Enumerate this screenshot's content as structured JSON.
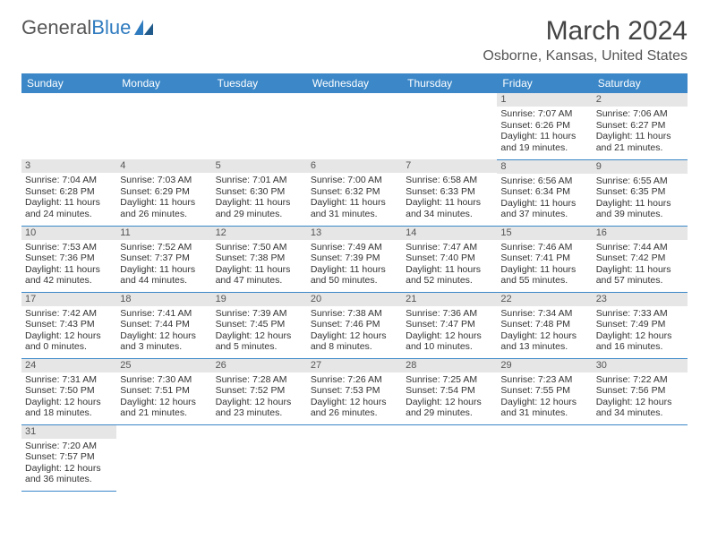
{
  "logo": {
    "text_a": "General",
    "text_b": "Blue"
  },
  "title": "March 2024",
  "location": "Osborne, Kansas, United States",
  "header_bg": "#3b87c8",
  "daynum_bg": "#e6e6e6",
  "day_names": [
    "Sunday",
    "Monday",
    "Tuesday",
    "Wednesday",
    "Thursday",
    "Friday",
    "Saturday"
  ],
  "weeks": [
    [
      null,
      null,
      null,
      null,
      null,
      {
        "n": "1",
        "sunrise": "Sunrise: 7:07 AM",
        "sunset": "Sunset: 6:26 PM",
        "daylight": "Daylight: 11 hours and 19 minutes."
      },
      {
        "n": "2",
        "sunrise": "Sunrise: 7:06 AM",
        "sunset": "Sunset: 6:27 PM",
        "daylight": "Daylight: 11 hours and 21 minutes."
      }
    ],
    [
      {
        "n": "3",
        "sunrise": "Sunrise: 7:04 AM",
        "sunset": "Sunset: 6:28 PM",
        "daylight": "Daylight: 11 hours and 24 minutes."
      },
      {
        "n": "4",
        "sunrise": "Sunrise: 7:03 AM",
        "sunset": "Sunset: 6:29 PM",
        "daylight": "Daylight: 11 hours and 26 minutes."
      },
      {
        "n": "5",
        "sunrise": "Sunrise: 7:01 AM",
        "sunset": "Sunset: 6:30 PM",
        "daylight": "Daylight: 11 hours and 29 minutes."
      },
      {
        "n": "6",
        "sunrise": "Sunrise: 7:00 AM",
        "sunset": "Sunset: 6:32 PM",
        "daylight": "Daylight: 11 hours and 31 minutes."
      },
      {
        "n": "7",
        "sunrise": "Sunrise: 6:58 AM",
        "sunset": "Sunset: 6:33 PM",
        "daylight": "Daylight: 11 hours and 34 minutes."
      },
      {
        "n": "8",
        "sunrise": "Sunrise: 6:56 AM",
        "sunset": "Sunset: 6:34 PM",
        "daylight": "Daylight: 11 hours and 37 minutes."
      },
      {
        "n": "9",
        "sunrise": "Sunrise: 6:55 AM",
        "sunset": "Sunset: 6:35 PM",
        "daylight": "Daylight: 11 hours and 39 minutes."
      }
    ],
    [
      {
        "n": "10",
        "sunrise": "Sunrise: 7:53 AM",
        "sunset": "Sunset: 7:36 PM",
        "daylight": "Daylight: 11 hours and 42 minutes."
      },
      {
        "n": "11",
        "sunrise": "Sunrise: 7:52 AM",
        "sunset": "Sunset: 7:37 PM",
        "daylight": "Daylight: 11 hours and 44 minutes."
      },
      {
        "n": "12",
        "sunrise": "Sunrise: 7:50 AM",
        "sunset": "Sunset: 7:38 PM",
        "daylight": "Daylight: 11 hours and 47 minutes."
      },
      {
        "n": "13",
        "sunrise": "Sunrise: 7:49 AM",
        "sunset": "Sunset: 7:39 PM",
        "daylight": "Daylight: 11 hours and 50 minutes."
      },
      {
        "n": "14",
        "sunrise": "Sunrise: 7:47 AM",
        "sunset": "Sunset: 7:40 PM",
        "daylight": "Daylight: 11 hours and 52 minutes."
      },
      {
        "n": "15",
        "sunrise": "Sunrise: 7:46 AM",
        "sunset": "Sunset: 7:41 PM",
        "daylight": "Daylight: 11 hours and 55 minutes."
      },
      {
        "n": "16",
        "sunrise": "Sunrise: 7:44 AM",
        "sunset": "Sunset: 7:42 PM",
        "daylight": "Daylight: 11 hours and 57 minutes."
      }
    ],
    [
      {
        "n": "17",
        "sunrise": "Sunrise: 7:42 AM",
        "sunset": "Sunset: 7:43 PM",
        "daylight": "Daylight: 12 hours and 0 minutes."
      },
      {
        "n": "18",
        "sunrise": "Sunrise: 7:41 AM",
        "sunset": "Sunset: 7:44 PM",
        "daylight": "Daylight: 12 hours and 3 minutes."
      },
      {
        "n": "19",
        "sunrise": "Sunrise: 7:39 AM",
        "sunset": "Sunset: 7:45 PM",
        "daylight": "Daylight: 12 hours and 5 minutes."
      },
      {
        "n": "20",
        "sunrise": "Sunrise: 7:38 AM",
        "sunset": "Sunset: 7:46 PM",
        "daylight": "Daylight: 12 hours and 8 minutes."
      },
      {
        "n": "21",
        "sunrise": "Sunrise: 7:36 AM",
        "sunset": "Sunset: 7:47 PM",
        "daylight": "Daylight: 12 hours and 10 minutes."
      },
      {
        "n": "22",
        "sunrise": "Sunrise: 7:34 AM",
        "sunset": "Sunset: 7:48 PM",
        "daylight": "Daylight: 12 hours and 13 minutes."
      },
      {
        "n": "23",
        "sunrise": "Sunrise: 7:33 AM",
        "sunset": "Sunset: 7:49 PM",
        "daylight": "Daylight: 12 hours and 16 minutes."
      }
    ],
    [
      {
        "n": "24",
        "sunrise": "Sunrise: 7:31 AM",
        "sunset": "Sunset: 7:50 PM",
        "daylight": "Daylight: 12 hours and 18 minutes."
      },
      {
        "n": "25",
        "sunrise": "Sunrise: 7:30 AM",
        "sunset": "Sunset: 7:51 PM",
        "daylight": "Daylight: 12 hours and 21 minutes."
      },
      {
        "n": "26",
        "sunrise": "Sunrise: 7:28 AM",
        "sunset": "Sunset: 7:52 PM",
        "daylight": "Daylight: 12 hours and 23 minutes."
      },
      {
        "n": "27",
        "sunrise": "Sunrise: 7:26 AM",
        "sunset": "Sunset: 7:53 PM",
        "daylight": "Daylight: 12 hours and 26 minutes."
      },
      {
        "n": "28",
        "sunrise": "Sunrise: 7:25 AM",
        "sunset": "Sunset: 7:54 PM",
        "daylight": "Daylight: 12 hours and 29 minutes."
      },
      {
        "n": "29",
        "sunrise": "Sunrise: 7:23 AM",
        "sunset": "Sunset: 7:55 PM",
        "daylight": "Daylight: 12 hours and 31 minutes."
      },
      {
        "n": "30",
        "sunrise": "Sunrise: 7:22 AM",
        "sunset": "Sunset: 7:56 PM",
        "daylight": "Daylight: 12 hours and 34 minutes."
      }
    ],
    [
      {
        "n": "31",
        "sunrise": "Sunrise: 7:20 AM",
        "sunset": "Sunset: 7:57 PM",
        "daylight": "Daylight: 12 hours and 36 minutes."
      },
      null,
      null,
      null,
      null,
      null,
      null
    ]
  ]
}
